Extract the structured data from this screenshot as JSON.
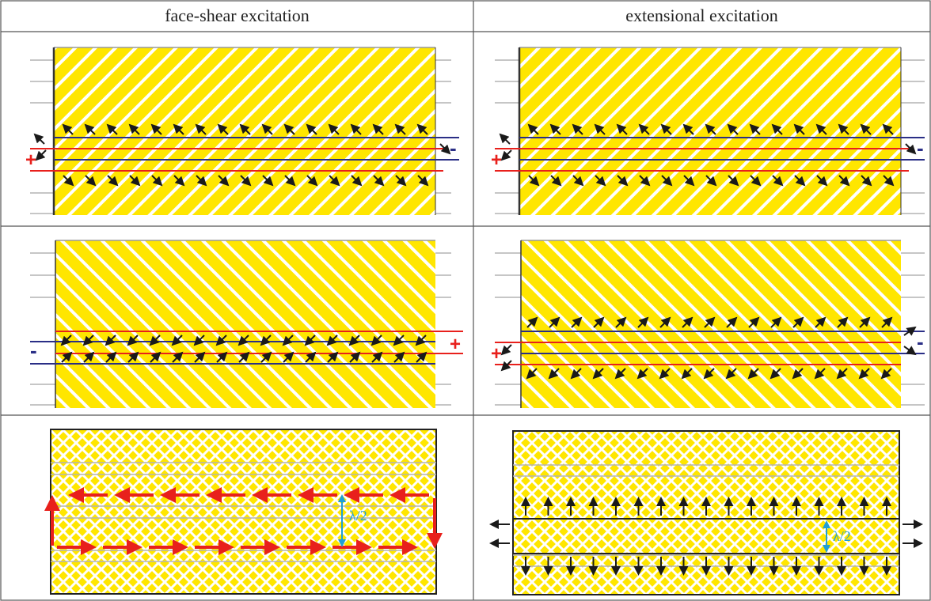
{
  "headers": {
    "left": "face-shear excitation",
    "right": "extensional excitation"
  },
  "signs": {
    "plus": "+",
    "minus": "-"
  },
  "annotations": {
    "half_wavelength": "λ/2"
  },
  "colors": {
    "grid_line": "#555555",
    "yellow_fill": "#FFE600",
    "hatch_white": "#FFFFFF",
    "electrode_red": "#E8201C",
    "electrode_blue": "#2A2E86",
    "arrow_black": "#1A1A1A",
    "arrow_red": "#E8201C",
    "lambda_cyan": "#1F9FD6",
    "gray_line": "#B4B4B4"
  }
}
